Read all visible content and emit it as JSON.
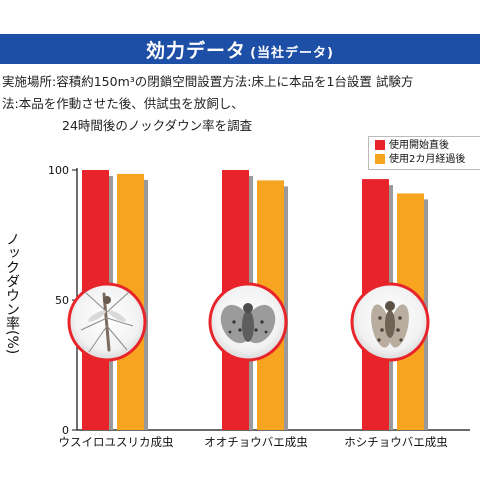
{
  "header": {
    "title": "効力データ",
    "subtitle": "(当社データ)"
  },
  "description": {
    "line1": "実施場所:容積約150m³の閉鎖空間設置方法:床上に本品を1台設置 試験方",
    "line2": "法:本品を作動させた後、供試虫を放飼し、",
    "line3": "24時間後のノックダウン率を調査"
  },
  "colors": {
    "header_band": "#1d4fa6",
    "series_1": "#e8232a",
    "series_2": "#f7a521",
    "shadow": "#9a9a9a",
    "insect_ring": "#e8232a"
  },
  "chart_data": {
    "type": "bar",
    "ylabel": "ノックダウン率(%)",
    "yticks": [
      "0",
      "50",
      "100"
    ],
    "ylim": [
      0,
      100
    ],
    "categories": [
      "ウスイロユスリカ成虫",
      "オオチョウバエ成虫",
      "ホシチョウバエ成虫"
    ],
    "series": [
      {
        "name": "使用開始直後",
        "values": [
          100,
          100,
          96.5
        ]
      },
      {
        "name": "使用2カ月経過後",
        "values": [
          98.5,
          96,
          91
        ]
      }
    ],
    "legend": "top-right",
    "grid": false,
    "insect_icons": [
      "mosquito-like-midge-icon",
      "moth-fly-icon",
      "spotted-moth-fly-icon"
    ]
  }
}
